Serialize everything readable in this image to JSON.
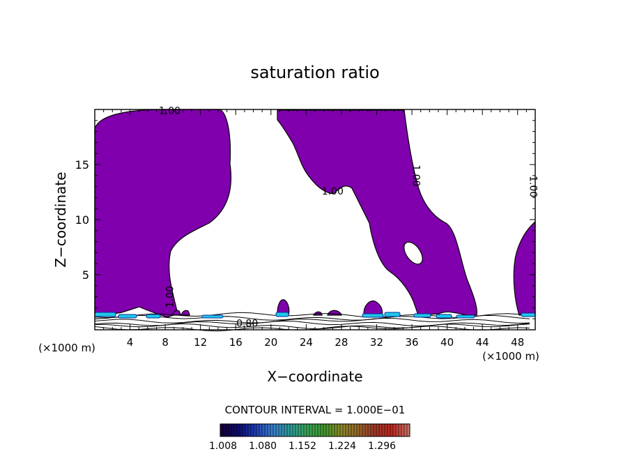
{
  "chart_data": {
    "type": "contour",
    "title": "saturation ratio",
    "xlabel": "X−coordinate",
    "ylabel": "Z−coordinate",
    "x_unit": "(×1000 m)",
    "z_unit": "(×1000 m)",
    "xlim": [
      0,
      50
    ],
    "ylim": [
      0,
      20
    ],
    "x_ticks": [
      4,
      8,
      12,
      16,
      20,
      24,
      28,
      32,
      36,
      40,
      44,
      48
    ],
    "y_ticks": [
      5,
      10,
      15
    ],
    "fill_color": "#7f00ac",
    "contour_interval_label": "CONTOUR INTERVAL = 1.000E−01",
    "contour_labels": [
      {
        "text": "1.00",
        "x": 8.5,
        "z": 19.9
      },
      {
        "text": "1.00",
        "x": 27.0,
        "z": 12.6
      },
      {
        "text": "1.00",
        "x": 36.5,
        "z": 14.0,
        "rotate": 90
      },
      {
        "text": "1.00",
        "x": 49.8,
        "z": 13.0,
        "rotate": 90
      },
      {
        "text": "1.00",
        "x": 8.5,
        "z": 3.0,
        "rotate": -90
      },
      {
        "text": "0.80",
        "x": 17.3,
        "z": 0.6
      }
    ],
    "colorbar": {
      "ticks": [
        "1.008",
        "1.080",
        "1.152",
        "1.224",
        "1.296"
      ],
      "colors": [
        "#16003a",
        "#0c0c70",
        "#1f3fb8",
        "#3a7fcf",
        "#2e9b9b",
        "#3aa55a",
        "#3f9a30",
        "#8a8a2c",
        "#9a6a2a",
        "#a03a2a",
        "#c0271f",
        "#c97066"
      ]
    }
  }
}
